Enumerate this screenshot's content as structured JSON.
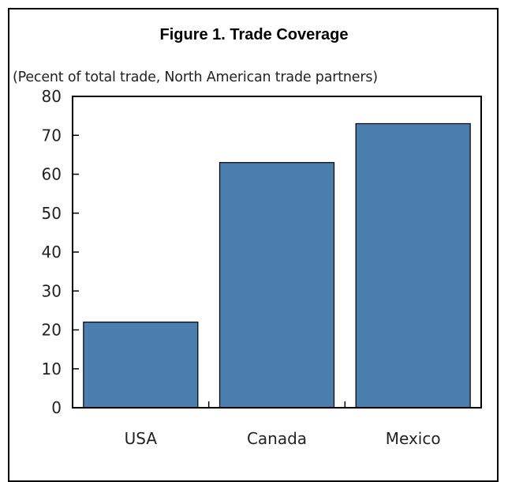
{
  "figure": {
    "title": "Figure 1. Trade Coverage",
    "subtitle": "(Pecent of total trade, North American trade partners)"
  },
  "colors": {
    "bar_fill": "#4a7eaf",
    "bar_stroke": "#000000",
    "axis": "#000000"
  },
  "chart_data": {
    "type": "bar",
    "title": "Figure 1. Trade Coverage",
    "subtitle": "(Pecent of total trade, North American trade partners)",
    "categories": [
      "USA",
      "Canada",
      "Mexico"
    ],
    "values": [
      22,
      63,
      73
    ],
    "ylim": [
      0,
      80
    ],
    "yticks": [
      0,
      10,
      20,
      30,
      40,
      50,
      60,
      70,
      80
    ],
    "xlabel": "",
    "ylabel": "",
    "grid": false,
    "legend": "none"
  }
}
